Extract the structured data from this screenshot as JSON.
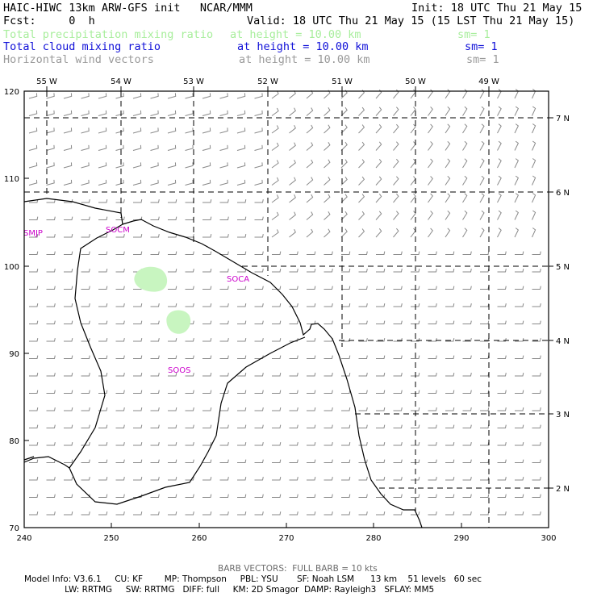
{
  "header": {
    "title": "HAIC-HIWC 13km ARW-GFS init   NCAR/MMM",
    "init": "Init: 18 UTC Thu 21 May 15",
    "fcst": "Fcst:     0  h",
    "valid": "Valid: 18 UTC Thu 21 May 15 (15 LST Thu 21 May 15)"
  },
  "fields": [
    {
      "name": "Total precipitation mixing ratio",
      "level": "at height = 10.00 km",
      "sm": "sm= 1",
      "color": "#a8ee9c"
    },
    {
      "name": "Total cloud mixing ratio",
      "level": "at height = 10.00 km",
      "sm": "sm= 1",
      "color": "#1010d8"
    },
    {
      "name": "Horizontal wind vectors",
      "level": "at height = 10.00 km",
      "sm": "sm= 1",
      "color": "#9a9a9a"
    }
  ],
  "map": {
    "lon_labels": [
      "55 W",
      "54 W",
      "53 W",
      "52 W",
      "51 W",
      "50 W",
      "49 W"
    ],
    "lat_labels": [
      "7 N",
      "6 N",
      "5 N",
      "4 N",
      "3 N",
      "2 N"
    ],
    "y_ticks": [
      "120",
      "110",
      "100",
      "90",
      "80",
      "70"
    ],
    "x_ticks": [
      "240",
      "250",
      "260",
      "270",
      "280",
      "290",
      "300"
    ],
    "stations": [
      "SMJP",
      "SOCM",
      "SOCA",
      "SOOS"
    ],
    "station_color": "#cc00cc",
    "coast_color": "#000000",
    "precip_color": "#c8f5c0"
  },
  "footer": {
    "barb_note": "BARB VECTORS:  FULL BARB = 10 kts",
    "line1": "Model Info: V3.6.1     CU: KF        MP: Thompson     PBL: YSU       SF: Noah LSM      13 km    51 levels   60 sec",
    "line2": "               LW: RRTMG     SW: RRTMG   DIFF: full     KM: 2D Smagor  DAMP: Rayleigh3   SFLAY: MM5"
  }
}
